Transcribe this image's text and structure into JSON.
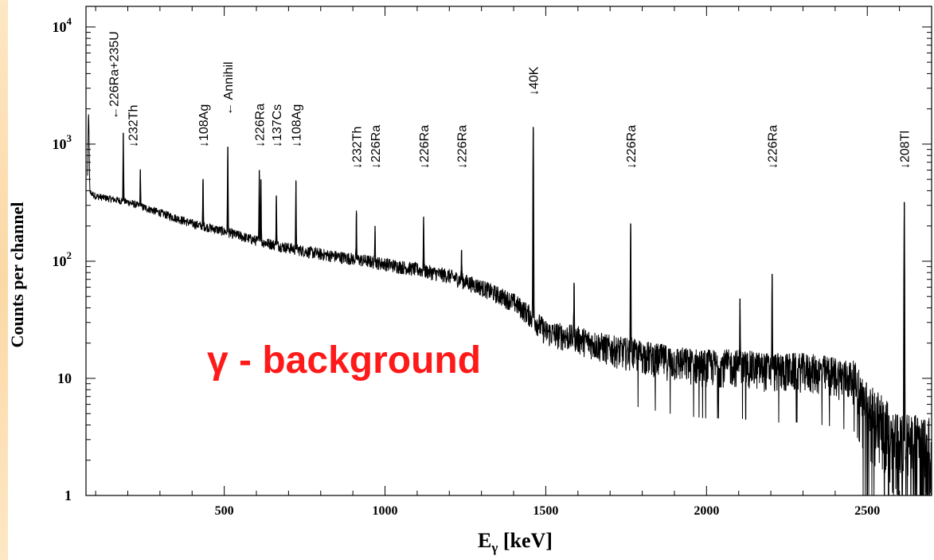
{
  "chart_data": {
    "type": "line",
    "title": "",
    "xlabel_main": "E",
    "xlabel_sub": "γ",
    "xlabel_unit": " [keV]",
    "ylabel": "Counts per channel",
    "xlim": [
      70,
      2700
    ],
    "ylim": [
      1,
      15000
    ],
    "y_scale": "log",
    "x_ticks": [
      500,
      1000,
      1500,
      2000,
      2500
    ],
    "x_tick_labels": [
      "500",
      "1000",
      "1500",
      "2000",
      "2500"
    ],
    "y_ticks": [
      {
        "value": 1,
        "base": "1",
        "exp": ""
      },
      {
        "value": 10,
        "base": "10",
        "exp": ""
      },
      {
        "value": 100,
        "base": "10",
        "exp": "2"
      },
      {
        "value": 1000,
        "base": "10",
        "exp": "3"
      },
      {
        "value": 10000,
        "base": "10",
        "exp": "4"
      }
    ],
    "continuum": [
      [
        75,
        400
      ],
      [
        100,
        360
      ],
      [
        200,
        320
      ],
      [
        300,
        260
      ],
      [
        400,
        210
      ],
      [
        500,
        180
      ],
      [
        600,
        150
      ],
      [
        700,
        130
      ],
      [
        800,
        115
      ],
      [
        900,
        105
      ],
      [
        1000,
        95
      ],
      [
        1100,
        85
      ],
      [
        1200,
        75
      ],
      [
        1300,
        60
      ],
      [
        1400,
        45
      ],
      [
        1460,
        33
      ],
      [
        1500,
        25
      ],
      [
        1600,
        22
      ],
      [
        1700,
        18
      ],
      [
        1800,
        16
      ],
      [
        1900,
        14
      ],
      [
        2000,
        13
      ],
      [
        2100,
        13
      ],
      [
        2200,
        12
      ],
      [
        2300,
        12
      ],
      [
        2400,
        11
      ],
      [
        2460,
        10
      ],
      [
        2500,
        6
      ],
      [
        2600,
        3
      ],
      [
        2700,
        2.5
      ]
    ],
    "peaks": [
      {
        "energy": 186,
        "counts": 1250
      },
      {
        "energy": 239,
        "counts": 600
      },
      {
        "energy": 434,
        "counts": 500
      },
      {
        "energy": 511,
        "counts": 950
      },
      {
        "energy": 609,
        "counts": 600
      },
      {
        "energy": 614,
        "counts": 500
      },
      {
        "energy": 662,
        "counts": 360
      },
      {
        "energy": 723,
        "counts": 480
      },
      {
        "energy": 911,
        "counts": 260
      },
      {
        "energy": 969,
        "counts": 200
      },
      {
        "energy": 1120,
        "counts": 240
      },
      {
        "energy": 1238,
        "counts": 125
      },
      {
        "energy": 1461,
        "counts": 1400
      },
      {
        "energy": 1588,
        "counts": 65
      },
      {
        "energy": 1764,
        "counts": 210
      },
      {
        "energy": 2104,
        "counts": 48
      },
      {
        "energy": 2204,
        "counts": 78
      },
      {
        "energy": 2615,
        "counts": 320
      }
    ],
    "annotations": [
      {
        "text": "←226Ra+235U",
        "energy": 155
      },
      {
        "text": "↓232Th",
        "energy": 215
      },
      {
        "text": "↓108Ag",
        "energy": 434
      },
      {
        "text": "← Annihil",
        "energy": 511
      },
      {
        "text": "↓226Ra",
        "energy": 609
      },
      {
        "text": "↓137Cs",
        "energy": 662
      },
      {
        "text": "↓108Ag",
        "energy": 723
      },
      {
        "text": "↓232Th",
        "energy": 911
      },
      {
        "text": "↓226Ra",
        "energy": 969
      },
      {
        "text": "↓226Ra",
        "energy": 1120
      },
      {
        "text": "↓226Ra",
        "energy": 1238
      },
      {
        "text": "↓40K",
        "energy": 1461
      },
      {
        "text": "↓226Ra",
        "energy": 1764
      },
      {
        "text": "↓226Ra",
        "energy": 2204
      },
      {
        "text": "↓208Tl",
        "energy": 2615
      }
    ],
    "overlay_text": "γ - background",
    "colors": {
      "trace": "#000000",
      "overlay": "#ff1a1a",
      "axis": "#000000"
    }
  }
}
